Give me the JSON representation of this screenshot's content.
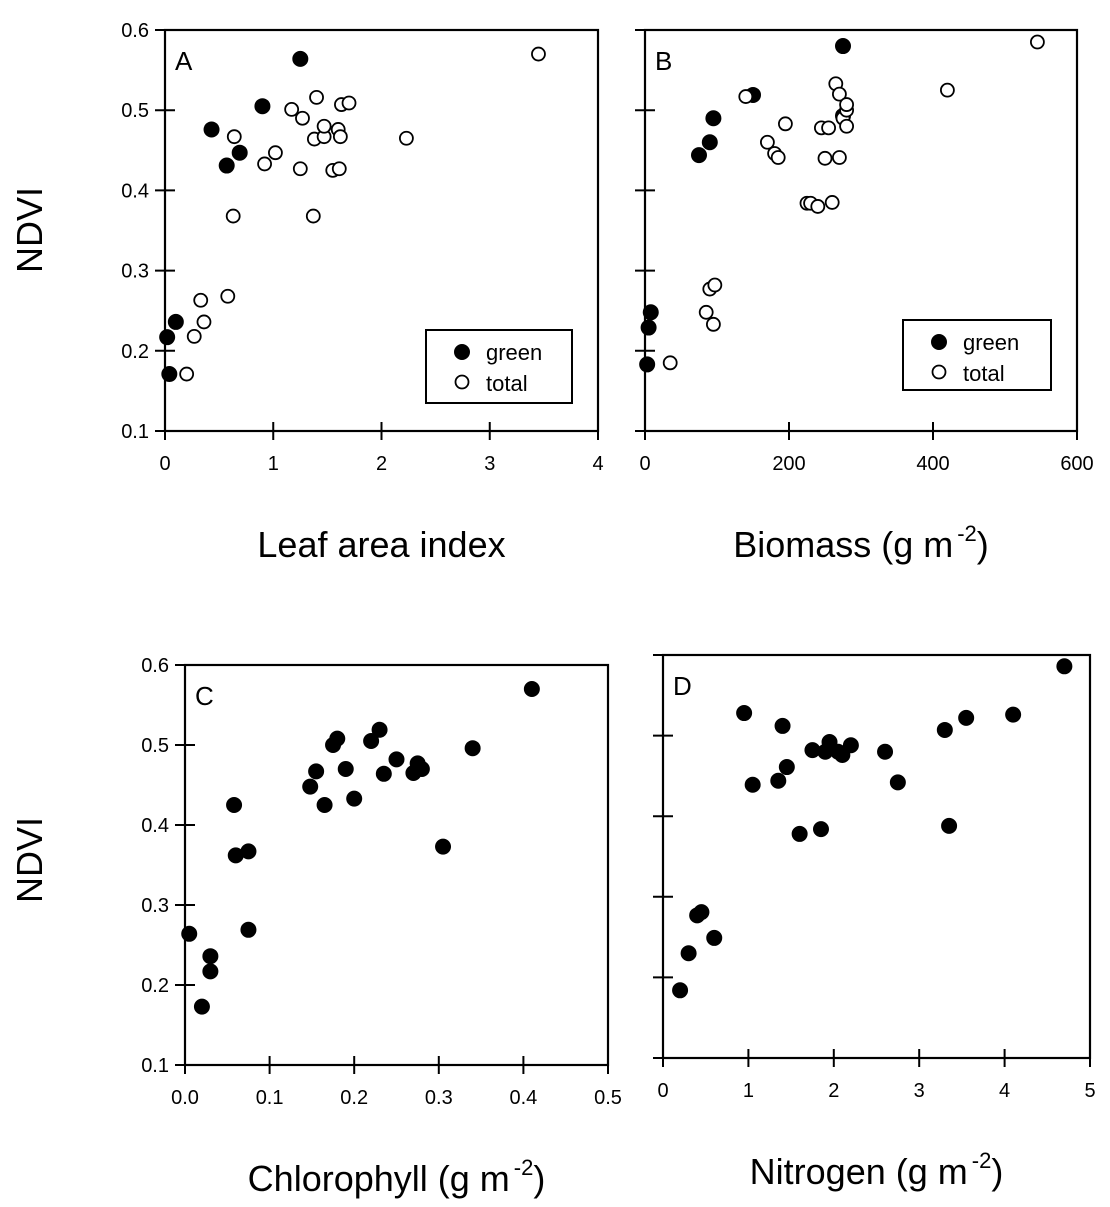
{
  "y_axis_label": "NDVI",
  "legend": {
    "green": "green",
    "total": "total"
  },
  "chart_data": [
    {
      "type": "scatter",
      "panel": "A",
      "xlabel": "Leaf area index",
      "xlabel_unit": "",
      "ylabel": "NDVI",
      "xlim": [
        0,
        4
      ],
      "ylim": [
        0.1,
        0.6
      ],
      "xticks": [
        "0",
        "1",
        "2",
        "3",
        "4"
      ],
      "yticks": [
        "0.1",
        "0.2",
        "0.3",
        "0.4",
        "0.5",
        "0.6"
      ],
      "ytick_labels_visible": true,
      "legend": "bottom-right",
      "series": [
        {
          "name": "green",
          "marker": "filled",
          "points": [
            [
              0.02,
              0.217
            ],
            [
              0.04,
              0.171
            ],
            [
              0.1,
              0.236
            ],
            [
              0.43,
              0.476
            ],
            [
              0.57,
              0.431
            ],
            [
              0.69,
              0.447
            ],
            [
              0.9,
              0.505
            ],
            [
              1.25,
              0.564
            ]
          ]
        },
        {
          "name": "total",
          "marker": "open",
          "points": [
            [
              0.2,
              0.171
            ],
            [
              0.27,
              0.218
            ],
            [
              0.33,
              0.263
            ],
            [
              0.36,
              0.236
            ],
            [
              0.58,
              0.268
            ],
            [
              0.63,
              0.368
            ],
            [
              0.64,
              0.467
            ],
            [
              0.92,
              0.433
            ],
            [
              1.02,
              0.447
            ],
            [
              1.17,
              0.501
            ],
            [
              1.25,
              0.427
            ],
            [
              1.27,
              0.49
            ],
            [
              1.37,
              0.368
            ],
            [
              1.38,
              0.464
            ],
            [
              1.4,
              0.516
            ],
            [
              1.47,
              0.467
            ],
            [
              1.47,
              0.48
            ],
            [
              1.55,
              0.425
            ],
            [
              1.61,
              0.427
            ],
            [
              1.6,
              0.476
            ],
            [
              1.62,
              0.467
            ],
            [
              1.63,
              0.507
            ],
            [
              1.7,
              0.509
            ],
            [
              2.23,
              0.465
            ],
            [
              3.45,
              0.57
            ]
          ]
        }
      ]
    },
    {
      "type": "scatter",
      "panel": "B",
      "xlabel": "Biomass (g m",
      "xlabel_unit": "-2",
      "xlabel_close": ")",
      "ylabel": "NDVI",
      "xlim": [
        0,
        600
      ],
      "ylim": [
        0.1,
        0.6
      ],
      "xticks": [
        "0",
        "200",
        "400",
        "600"
      ],
      "yticks": [
        "0.1",
        "0.2",
        "0.3",
        "0.4",
        "0.5",
        "0.6"
      ],
      "ytick_labels_visible": false,
      "legend": "bottom-right",
      "series": [
        {
          "name": "green",
          "marker": "filled",
          "points": [
            [
              3,
              0.183
            ],
            [
              5,
              0.229
            ],
            [
              8,
              0.248
            ],
            [
              75,
              0.444
            ],
            [
              90,
              0.46
            ],
            [
              95,
              0.49
            ],
            [
              150,
              0.519
            ],
            [
              275,
              0.58
            ],
            [
              275,
              0.493
            ]
          ]
        },
        {
          "name": "total",
          "marker": "open",
          "points": [
            [
              35,
              0.185
            ],
            [
              85,
              0.248
            ],
            [
              90,
              0.277
            ],
            [
              95,
              0.233
            ],
            [
              97,
              0.282
            ],
            [
              140,
              0.517
            ],
            [
              170,
              0.46
            ],
            [
              180,
              0.446
            ],
            [
              185,
              0.441
            ],
            [
              195,
              0.483
            ],
            [
              225,
              0.384
            ],
            [
              230,
              0.384
            ],
            [
              240,
              0.38
            ],
            [
              245,
              0.478
            ],
            [
              250,
              0.44
            ],
            [
              255,
              0.478
            ],
            [
              260,
              0.385
            ],
            [
              265,
              0.533
            ],
            [
              270,
              0.52
            ],
            [
              270,
              0.441
            ],
            [
              275,
              0.49
            ],
            [
              280,
              0.48
            ],
            [
              280,
              0.5
            ],
            [
              280,
              0.507
            ],
            [
              420,
              0.525
            ],
            [
              545,
              0.585
            ]
          ]
        }
      ]
    },
    {
      "type": "scatter",
      "panel": "C",
      "xlabel": "Chlorophyll (g m",
      "xlabel_unit": "-2",
      "xlabel_close": ")",
      "ylabel": "NDVI",
      "xlim": [
        0,
        0.5
      ],
      "ylim": [
        0.1,
        0.6
      ],
      "xticks": [
        "0.0",
        "0.1",
        "0.2",
        "0.3",
        "0.4",
        "0.5"
      ],
      "yticks": [
        "0.1",
        "0.2",
        "0.3",
        "0.4",
        "0.5",
        "0.6"
      ],
      "ytick_labels_visible": true,
      "legend": "none",
      "series": [
        {
          "name": "",
          "marker": "filled",
          "points": [
            [
              0.005,
              0.264
            ],
            [
              0.02,
              0.173
            ],
            [
              0.03,
              0.236
            ],
            [
              0.03,
              0.217
            ],
            [
              0.058,
              0.425
            ],
            [
              0.06,
              0.362
            ],
            [
              0.075,
              0.367
            ],
            [
              0.075,
              0.269
            ],
            [
              0.148,
              0.448
            ],
            [
              0.155,
              0.467
            ],
            [
              0.165,
              0.425
            ],
            [
              0.175,
              0.5
            ],
            [
              0.18,
              0.508
            ],
            [
              0.19,
              0.47
            ],
            [
              0.2,
              0.433
            ],
            [
              0.22,
              0.505
            ],
            [
              0.23,
              0.519
            ],
            [
              0.235,
              0.464
            ],
            [
              0.25,
              0.482
            ],
            [
              0.27,
              0.465
            ],
            [
              0.275,
              0.477
            ],
            [
              0.28,
              0.47
            ],
            [
              0.305,
              0.373
            ],
            [
              0.34,
              0.496
            ],
            [
              0.41,
              0.57
            ]
          ]
        }
      ]
    },
    {
      "type": "scatter",
      "panel": "D",
      "xlabel": "Nitrogen (g m",
      "xlabel_unit": "-2",
      "xlabel_close": ")",
      "ylabel": "NDVI",
      "xlim": [
        0,
        5
      ],
      "ylim": [
        0.1,
        0.6
      ],
      "xticks": [
        "0",
        "1",
        "2",
        "3",
        "4",
        "5"
      ],
      "yticks": [
        "0.1",
        "0.2",
        "0.3",
        "0.4",
        "0.5",
        "0.6"
      ],
      "ytick_labels_visible": false,
      "legend": "none",
      "series": [
        {
          "name": "",
          "marker": "filled",
          "points": [
            [
              0.2,
              0.184
            ],
            [
              0.3,
              0.23
            ],
            [
              0.4,
              0.277
            ],
            [
              0.45,
              0.281
            ],
            [
              0.6,
              0.249
            ],
            [
              0.95,
              0.528
            ],
            [
              1.05,
              0.439
            ],
            [
              1.35,
              0.444
            ],
            [
              1.4,
              0.512
            ],
            [
              1.45,
              0.461
            ],
            [
              1.6,
              0.378
            ],
            [
              1.75,
              0.482
            ],
            [
              1.85,
              0.384
            ],
            [
              1.9,
              0.48
            ],
            [
              1.95,
              0.492
            ],
            [
              2.05,
              0.48
            ],
            [
              2.1,
              0.476
            ],
            [
              2.2,
              0.488
            ],
            [
              2.6,
              0.48
            ],
            [
              2.75,
              0.442
            ],
            [
              3.3,
              0.507
            ],
            [
              3.35,
              0.388
            ],
            [
              3.55,
              0.522
            ],
            [
              4.1,
              0.526
            ],
            [
              4.7,
              0.586
            ]
          ]
        }
      ]
    }
  ]
}
